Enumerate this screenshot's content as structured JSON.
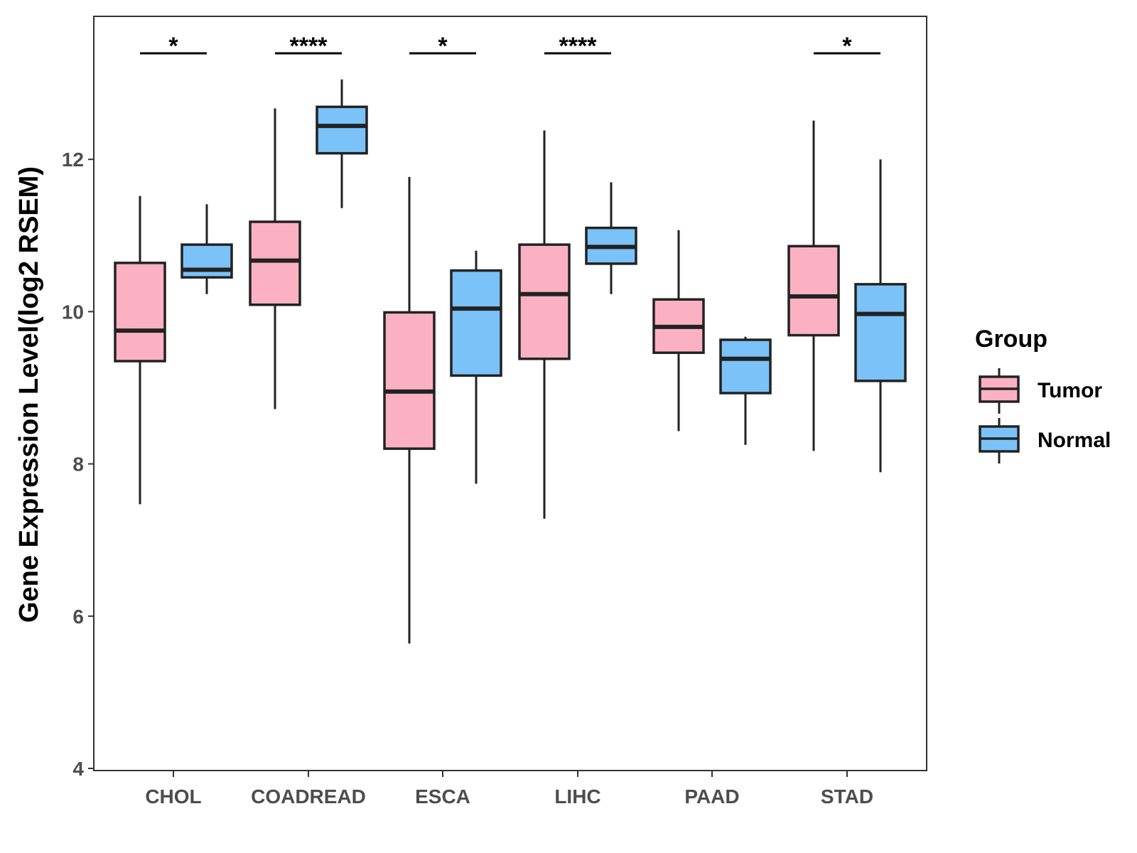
{
  "chart_data": {
    "type": "boxplot",
    "ylabel": "Gene Expression Level(log2 RSEM)",
    "xlabel": "",
    "ylim": [
      4,
      13.9
    ],
    "yticks": [
      4,
      6,
      8,
      10,
      12
    ],
    "categories": [
      "CHOL",
      "COADREAD",
      "ESCA",
      "LIHC",
      "PAAD",
      "STAD"
    ],
    "legend": {
      "title": "Group",
      "entries": [
        {
          "name": "Tumor",
          "color": "#FBB1C3"
        },
        {
          "name": "Normal",
          "color": "#7AC2F8"
        }
      ]
    },
    "series": [
      {
        "name": "Tumor",
        "color": "#FBB1C3",
        "boxes": [
          {
            "min": 7.47,
            "q1": 9.35,
            "median": 9.75,
            "q3": 10.64,
            "max": 11.52
          },
          {
            "min": 8.72,
            "q1": 10.09,
            "median": 10.67,
            "q3": 11.18,
            "max": 12.67
          },
          {
            "min": 5.64,
            "q1": 8.2,
            "median": 8.95,
            "q3": 9.99,
            "max": 11.77
          },
          {
            "min": 7.28,
            "q1": 9.38,
            "median": 10.23,
            "q3": 10.88,
            "max": 12.38
          },
          {
            "min": 8.43,
            "q1": 9.46,
            "median": 9.8,
            "q3": 10.16,
            "max": 11.07
          },
          {
            "min": 8.17,
            "q1": 9.69,
            "median": 10.2,
            "q3": 10.86,
            "max": 12.51
          }
        ]
      },
      {
        "name": "Normal",
        "color": "#7AC2F8",
        "boxes": [
          {
            "min": 10.23,
            "q1": 10.45,
            "median": 10.55,
            "q3": 10.88,
            "max": 11.41
          },
          {
            "min": 11.36,
            "q1": 12.08,
            "median": 12.44,
            "q3": 12.69,
            "max": 13.05
          },
          {
            "min": 7.74,
            "q1": 9.16,
            "median": 10.04,
            "q3": 10.54,
            "max": 10.8
          },
          {
            "min": 10.23,
            "q1": 10.63,
            "median": 10.85,
            "q3": 11.1,
            "max": 11.7
          },
          {
            "min": 8.25,
            "q1": 8.93,
            "median": 9.38,
            "q3": 9.63,
            "max": 9.67
          },
          {
            "min": 7.89,
            "q1": 9.09,
            "median": 9.97,
            "q3": 10.36,
            "max": 12.0
          }
        ]
      }
    ],
    "significance": [
      "*",
      "****",
      "*",
      "****",
      "",
      "*"
    ]
  }
}
